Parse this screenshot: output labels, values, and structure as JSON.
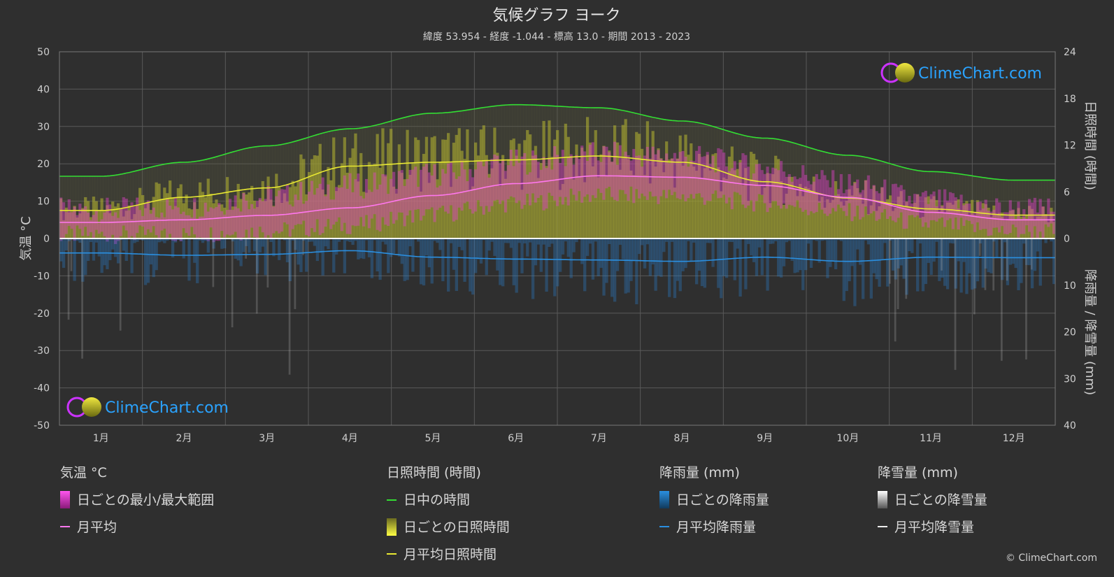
{
  "header": {
    "title": "気候グラフ ヨーク",
    "subtitle": "緯度 53.954 - 経度 -1.044 - 標高 13.0 - 期間 2013 - 2023"
  },
  "logo_text": "ClimeChart.com",
  "copyright": "© ClimeChart.com",
  "axes": {
    "left_title": "気温 °C",
    "right_top_title": "日照時間 (時間)",
    "right_bottom_title": "降雨量 / 降雪量 (mm)"
  },
  "legend": {
    "temperature": {
      "header": "気温 °C",
      "daily_range": "日ごとの最小/最大範囲",
      "monthly_avg": "月平均"
    },
    "sunshine": {
      "header": "日照時間 (時間)",
      "daylight": "日中の時間",
      "daily_sunshine": "日ごとの日照時間",
      "monthly_avg_sunshine": "月平均日照時間"
    },
    "rain": {
      "header": "降雨量 (mm)",
      "daily_rain": "日ごとの降雨量",
      "monthly_avg_rain": "月平均降雨量"
    },
    "snow": {
      "header": "降雪量 (mm)",
      "daily_snow": "日ごとの降雪量",
      "monthly_avg_snow": "月平均降雪量"
    }
  },
  "colors": {
    "daylight": "#33dd33",
    "sunshine_line": "#e8e832",
    "temp_line": "#ff77ee",
    "temp_band": "#e040c8",
    "sun_band": "#b8b830",
    "rain": "#2a7fcc",
    "rain_line": "#2a8fe0",
    "snow": "#d0d0d0",
    "grid": "#5a5a5a",
    "zero_line": "#ffffff"
  },
  "chart_data": {
    "type": "line",
    "categories": [
      "1月",
      "2月",
      "3月",
      "4月",
      "5月",
      "6月",
      "7月",
      "8月",
      "9月",
      "10月",
      "11月",
      "12月"
    ],
    "left_axis": {
      "label": "気温 °C",
      "ylim": [
        -50,
        50
      ],
      "ticks": [
        50,
        40,
        30,
        20,
        10,
        0,
        -10,
        -20,
        -30,
        -40,
        -50
      ]
    },
    "right_axis_top": {
      "label": "日照時間 (時間)",
      "ylim": [
        0,
        24
      ],
      "ticks": [
        24,
        18,
        12,
        6,
        0
      ]
    },
    "right_axis_bottom": {
      "label": "降雨量 / 降雪量 (mm)",
      "ylim": [
        0,
        40
      ],
      "ticks": [
        10,
        20,
        30,
        40
      ]
    },
    "grid": true,
    "series": [
      {
        "name": "日中の時間",
        "unit": "hours",
        "values": [
          8.0,
          9.8,
          11.9,
          14.1,
          16.1,
          17.2,
          16.8,
          15.1,
          12.9,
          10.7,
          8.6,
          7.5
        ]
      },
      {
        "name": "月平均日照時間",
        "unit": "hours",
        "values": [
          3.6,
          5.3,
          6.5,
          9.3,
          9.8,
          10.1,
          10.6,
          9.8,
          7.3,
          5.2,
          3.8,
          3.0
        ]
      },
      {
        "name": "月平均",
        "unit": "°C",
        "values": [
          4.3,
          5.0,
          6.2,
          8.2,
          11.5,
          14.7,
          16.8,
          16.4,
          14.2,
          11.0,
          7.0,
          5.0
        ]
      },
      {
        "name": "月平均降雨量",
        "unit": "mm",
        "values": [
          3.1,
          3.6,
          3.4,
          2.6,
          4.0,
          4.4,
          4.6,
          4.9,
          4.0,
          4.9,
          4.0,
          4.1
        ]
      },
      {
        "name": "日ごとの最小/最大範囲",
        "unit": "°C",
        "min": [
          1.0,
          1.2,
          2.0,
          3.5,
          6.5,
          9.5,
          11.5,
          11.3,
          9.5,
          7.0,
          3.8,
          1.8
        ],
        "max": [
          7.5,
          8.5,
          11.0,
          14.0,
          17.0,
          20.5,
          22.5,
          22.0,
          19.0,
          14.5,
          10.0,
          7.8
        ]
      }
    ]
  }
}
